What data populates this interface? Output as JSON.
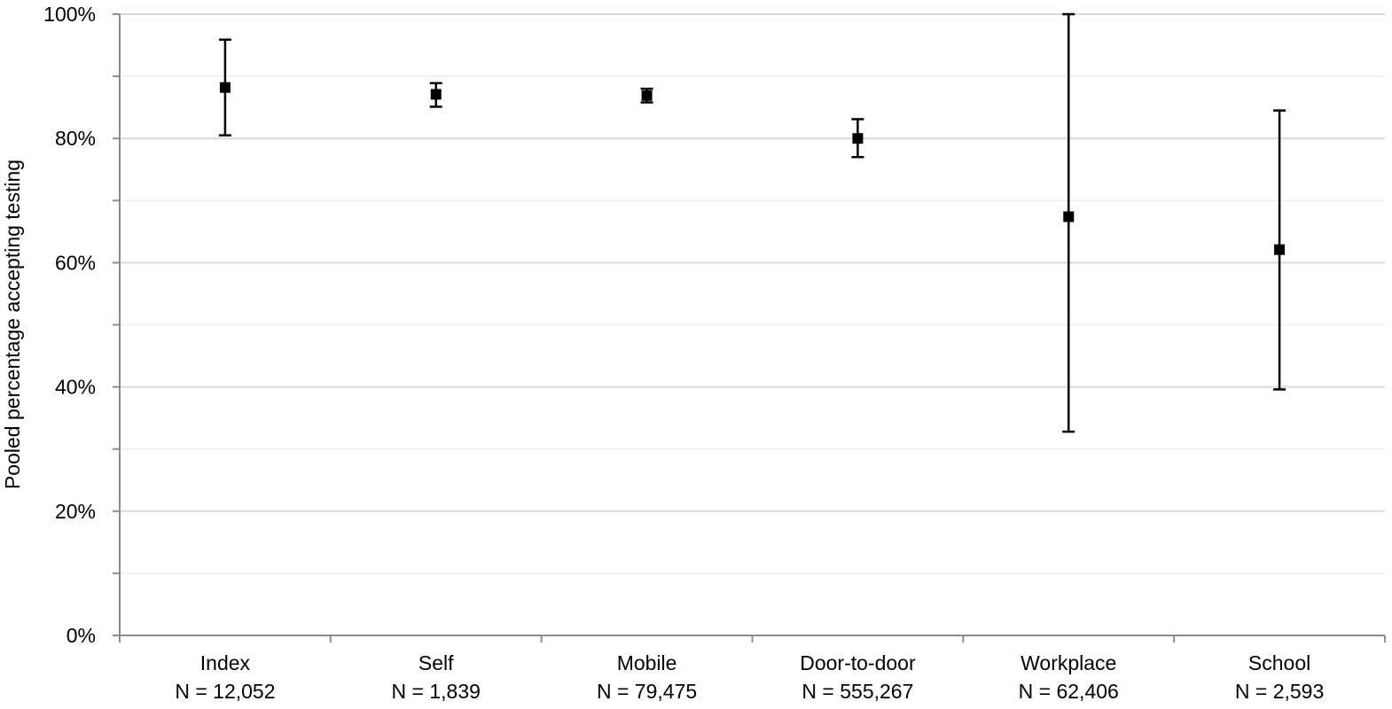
{
  "chart_data": {
    "type": "scatter",
    "title": "",
    "xlabel": "",
    "ylabel": "Pooled percentage accepting testing",
    "ylim": [
      0,
      100
    ],
    "y_major_ticks": [
      "0%",
      "20%",
      "40%",
      "60%",
      "80%",
      "100%"
    ],
    "grid": true,
    "legend": "none",
    "categories": [
      "Index",
      "Self",
      "Mobile",
      "Door-to-door",
      "Workplace",
      "School"
    ],
    "sample_sizes": [
      "N = 12,052",
      "N = 1,839",
      "N = 79,475",
      "N = 555,267",
      "N = 62,406",
      "N = 2,593"
    ],
    "series": [
      {
        "values": [
          88.2,
          87.1,
          86.9,
          80.0,
          67.4,
          62.1
        ],
        "lower": [
          80.5,
          85.1,
          85.8,
          77.0,
          32.8,
          39.6
        ],
        "upper": [
          95.9,
          88.9,
          88.0,
          83.1,
          100.0,
          84.5
        ]
      }
    ],
    "colors": {
      "marker": "#000000",
      "grid": "#d9d9d9",
      "axis": "#8c8c8c"
    }
  }
}
